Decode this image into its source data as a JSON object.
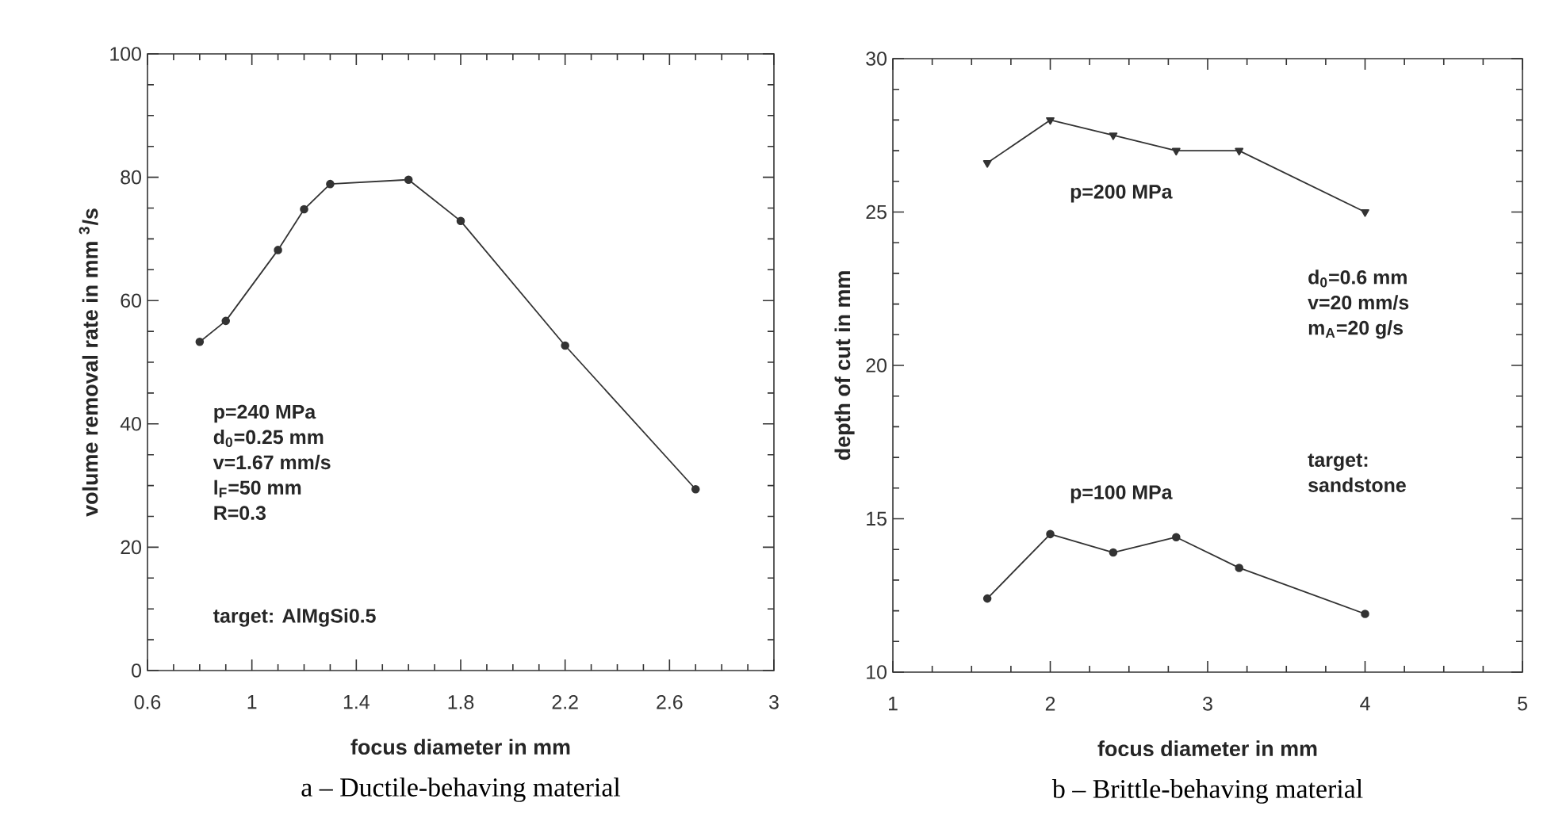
{
  "chart_data": [
    {
      "type": "line",
      "title": "a – Ductile-behaving material",
      "xlabel": "focus diameter in mm",
      "ylabel": "volume removal rate in mm $^{3}$/s",
      "x": [
        0.8,
        0.9,
        1.1,
        1.2,
        1.3,
        1.6,
        1.8,
        2.2,
        2.7
      ],
      "series": [
        {
          "color": "#333333",
          "marker": "circle",
          "values": [
            53.3,
            56.7,
            68.2,
            74.8,
            78.9,
            79.6,
            72.9,
            52.7,
            29.4
          ]
        }
      ],
      "xlim": [
        0.6,
        3
      ],
      "ylim": [
        0,
        100
      ],
      "xticks": [
        0.6,
        1,
        1.4,
        1.8,
        2.2,
        2.6,
        3
      ],
      "yticks": [
        0,
        20,
        40,
        60,
        80,
        100
      ],
      "annotations": [
        "p=240 MPa",
        "d$_{0}$=0.25 mm",
        "v=1.67 mm/s",
        "l$_{F}$=50 mm",
        "R=0.3",
        "target: AlMgSi0.5"
      ]
    },
    {
      "type": "line",
      "title": "b – Brittle-behaving material",
      "xlabel": "focus diameter in mm",
      "ylabel": "depth of cut in mm",
      "x": [
        1.6,
        2,
        2.4,
        2.8,
        3.2,
        4
      ],
      "series": [
        {
          "name": "p=200 MPa",
          "color": "#333333",
          "marker": "triangle",
          "values": [
            26.6,
            28.0,
            27.5,
            27.0,
            27.0,
            25.0
          ]
        },
        {
          "name": "p=100 MPa",
          "color": "#333333",
          "marker": "circle",
          "values": [
            12.4,
            14.5,
            13.9,
            14.4,
            13.4,
            11.9
          ]
        }
      ],
      "xlim": [
        1,
        5
      ],
      "ylim": [
        10,
        30
      ],
      "xticks": [
        1,
        2,
        3,
        4,
        5
      ],
      "yticks": [
        10,
        15,
        20,
        25,
        30
      ],
      "annotations": [
        "d$_{0}$=0.6 mm",
        "v=20 mm/s",
        "m$_{A}$=20 g/s",
        "target:",
        "sandstone"
      ]
    }
  ]
}
